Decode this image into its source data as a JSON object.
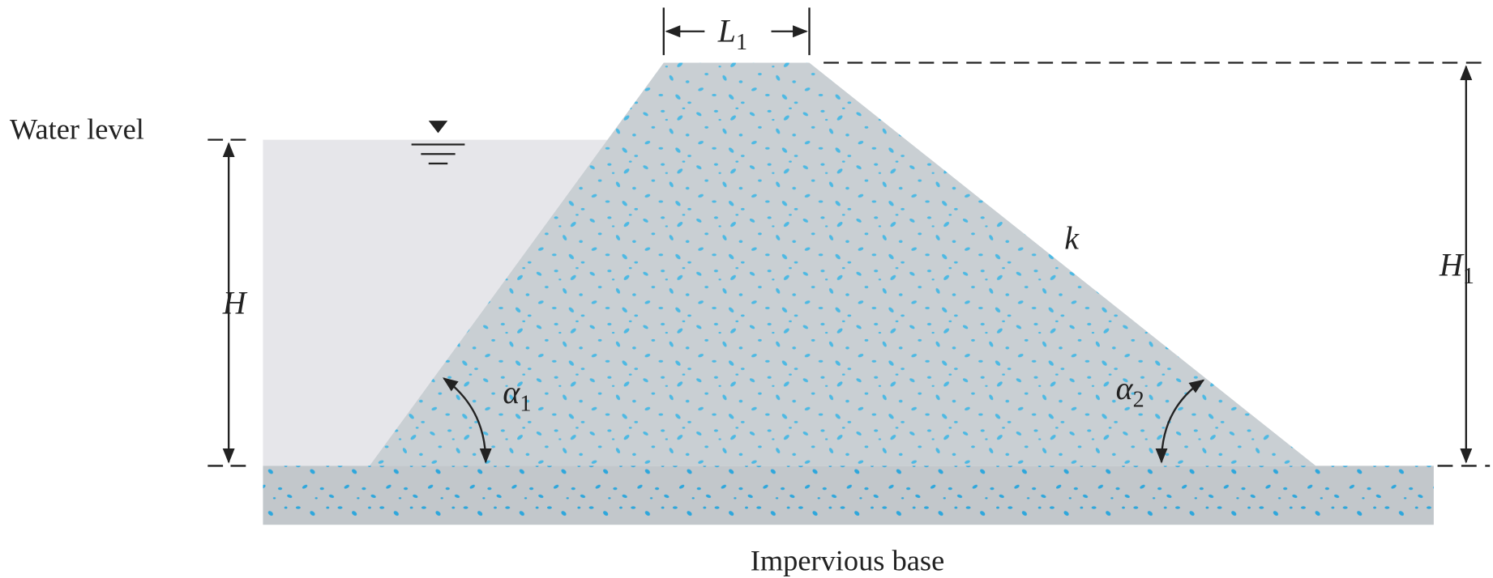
{
  "labels": {
    "water_level": "Water level",
    "H": "H",
    "H1": {
      "symbol": "H",
      "subscript": "1"
    },
    "L1": {
      "symbol": "L",
      "subscript": "1"
    },
    "k": "k",
    "alpha1": {
      "symbol": "α",
      "subscript": "1"
    },
    "alpha2": {
      "symbol": "α",
      "subscript": "2"
    },
    "base": "Impervious base"
  }
}
